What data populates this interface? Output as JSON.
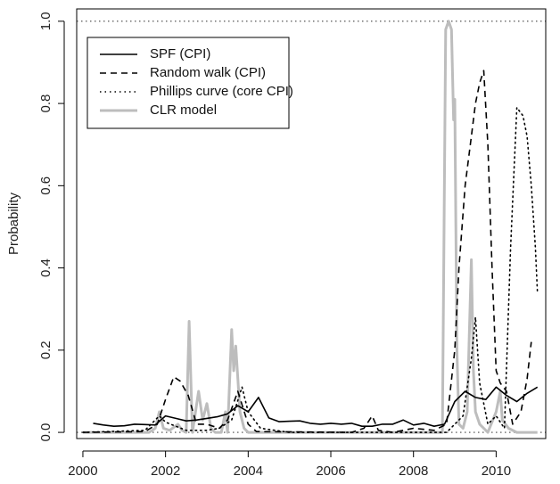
{
  "chart_data": {
    "type": "line",
    "title": "",
    "xlabel": "",
    "ylabel": "Probability",
    "xlim": [
      1999.85,
      2011.2
    ],
    "ylim": [
      -0.015,
      1.03
    ],
    "x_ticks": [
      2000,
      2002,
      2004,
      2006,
      2008,
      2010
    ],
    "x_tick_labels": [
      "2000",
      "2002",
      "2004",
      "2006",
      "2008",
      "2010"
    ],
    "y_ticks": [
      0.0,
      0.2,
      0.4,
      0.6,
      0.8,
      1.0
    ],
    "y_tick_labels": [
      "0.0",
      "0.2",
      "0.4",
      "0.6",
      "0.8",
      "1.0"
    ],
    "grid": false,
    "legend_position": "top-left",
    "reference_lines": [
      {
        "y": 1.0,
        "style": "dotted",
        "color": "#444444"
      },
      {
        "y": 0.0,
        "style": "dotted",
        "color": "#444444"
      }
    ],
    "series": [
      {
        "name": "SPF (CPI)",
        "style": "solid",
        "color": "#000000",
        "width": 1.6,
        "points": [
          [
            2000.25,
            0.022
          ],
          [
            2000.5,
            0.018
          ],
          [
            2000.75,
            0.015
          ],
          [
            2001.0,
            0.016
          ],
          [
            2001.25,
            0.02
          ],
          [
            2001.5,
            0.019
          ],
          [
            2001.75,
            0.018
          ],
          [
            2002.0,
            0.04
          ],
          [
            2002.25,
            0.034
          ],
          [
            2002.5,
            0.028
          ],
          [
            2002.75,
            0.03
          ],
          [
            2003.0,
            0.034
          ],
          [
            2003.25,
            0.038
          ],
          [
            2003.5,
            0.045
          ],
          [
            2003.75,
            0.065
          ],
          [
            2004.0,
            0.05
          ],
          [
            2004.25,
            0.085
          ],
          [
            2004.5,
            0.035
          ],
          [
            2004.75,
            0.026
          ],
          [
            2005.0,
            0.027
          ],
          [
            2005.25,
            0.028
          ],
          [
            2005.5,
            0.022
          ],
          [
            2005.75,
            0.02
          ],
          [
            2006.0,
            0.022
          ],
          [
            2006.25,
            0.02
          ],
          [
            2006.5,
            0.022
          ],
          [
            2006.75,
            0.015
          ],
          [
            2007.0,
            0.015
          ],
          [
            2007.25,
            0.02
          ],
          [
            2007.5,
            0.02
          ],
          [
            2007.75,
            0.03
          ],
          [
            2008.0,
            0.018
          ],
          [
            2008.25,
            0.022
          ],
          [
            2008.5,
            0.015
          ],
          [
            2008.75,
            0.02
          ],
          [
            2009.0,
            0.075
          ],
          [
            2009.25,
            0.1
          ],
          [
            2009.5,
            0.085
          ],
          [
            2009.75,
            0.08
          ],
          [
            2010.0,
            0.11
          ],
          [
            2010.25,
            0.09
          ],
          [
            2010.5,
            0.075
          ],
          [
            2010.75,
            0.095
          ],
          [
            2011.0,
            0.11
          ]
        ]
      },
      {
        "name": "Random walk (CPI)",
        "style": "dashed",
        "color": "#000000",
        "width": 1.6,
        "points": [
          [
            2000.0,
            0.0
          ],
          [
            2001.5,
            0.002
          ],
          [
            2001.8,
            0.02
          ],
          [
            2002.0,
            0.08
          ],
          [
            2002.2,
            0.135
          ],
          [
            2002.35,
            0.125
          ],
          [
            2002.55,
            0.09
          ],
          [
            2002.75,
            0.02
          ],
          [
            2003.0,
            0.02
          ],
          [
            2003.3,
            0.01
          ],
          [
            2003.5,
            0.03
          ],
          [
            2003.75,
            0.1
          ],
          [
            2004.0,
            0.02
          ],
          [
            2004.2,
            0.002
          ],
          [
            2006.5,
            0.0
          ],
          [
            2006.8,
            0.01
          ],
          [
            2007.0,
            0.04
          ],
          [
            2007.15,
            0.005
          ],
          [
            2007.5,
            0.0
          ],
          [
            2008.0,
            0.01
          ],
          [
            2008.5,
            0.005
          ],
          [
            2008.8,
            0.02
          ],
          [
            2009.0,
            0.2
          ],
          [
            2009.1,
            0.4
          ],
          [
            2009.25,
            0.6
          ],
          [
            2009.4,
            0.72
          ],
          [
            2009.5,
            0.8
          ],
          [
            2009.6,
            0.85
          ],
          [
            2009.7,
            0.88
          ],
          [
            2009.8,
            0.7
          ],
          [
            2009.9,
            0.4
          ],
          [
            2010.0,
            0.15
          ],
          [
            2010.1,
            0.12
          ],
          [
            2010.25,
            0.1
          ],
          [
            2010.4,
            0.02
          ],
          [
            2010.6,
            0.05
          ],
          [
            2010.75,
            0.13
          ],
          [
            2010.85,
            0.22
          ]
        ]
      },
      {
        "name": "Phillips curve (core CPI)",
        "style": "dotted",
        "color": "#000000",
        "width": 1.6,
        "points": [
          [
            2000.0,
            0.0
          ],
          [
            2001.5,
            0.005
          ],
          [
            2001.85,
            0.04
          ],
          [
            2002.0,
            0.025
          ],
          [
            2002.5,
            0.005
          ],
          [
            2003.0,
            0.005
          ],
          [
            2003.3,
            0.01
          ],
          [
            2003.6,
            0.03
          ],
          [
            2003.85,
            0.11
          ],
          [
            2004.0,
            0.05
          ],
          [
            2004.3,
            0.01
          ],
          [
            2005.0,
            0.0
          ],
          [
            2008.8,
            0.0
          ],
          [
            2009.0,
            0.02
          ],
          [
            2009.2,
            0.04
          ],
          [
            2009.4,
            0.18
          ],
          [
            2009.5,
            0.28
          ],
          [
            2009.6,
            0.12
          ],
          [
            2009.8,
            0.02
          ],
          [
            2010.0,
            0.04
          ],
          [
            2010.2,
            0.01
          ],
          [
            2010.35,
            0.45
          ],
          [
            2010.5,
            0.79
          ],
          [
            2010.65,
            0.77
          ],
          [
            2010.75,
            0.72
          ],
          [
            2010.85,
            0.6
          ],
          [
            2010.95,
            0.45
          ],
          [
            2011.0,
            0.34
          ]
        ]
      },
      {
        "name": "CLR model",
        "style": "solid",
        "color": "#bdbdbd",
        "width": 3,
        "points": [
          [
            2000.0,
            0.0
          ],
          [
            2001.6,
            0.0
          ],
          [
            2001.75,
            0.01
          ],
          [
            2001.85,
            0.05
          ],
          [
            2001.95,
            0.01
          ],
          [
            2002.1,
            0.005
          ],
          [
            2002.3,
            0.02
          ],
          [
            2002.4,
            0.005
          ],
          [
            2002.5,
            0.0
          ],
          [
            2002.57,
            0.27
          ],
          [
            2002.65,
            0.0
          ],
          [
            2002.8,
            0.1
          ],
          [
            2002.9,
            0.03
          ],
          [
            2003.0,
            0.07
          ],
          [
            2003.1,
            0.01
          ],
          [
            2003.2,
            0.0
          ],
          [
            2003.35,
            0.0
          ],
          [
            2003.45,
            0.05
          ],
          [
            2003.5,
            0.0
          ],
          [
            2003.6,
            0.25
          ],
          [
            2003.65,
            0.15
          ],
          [
            2003.7,
            0.21
          ],
          [
            2003.8,
            0.05
          ],
          [
            2003.9,
            0.01
          ],
          [
            2004.0,
            0.0
          ],
          [
            2008.7,
            0.0
          ],
          [
            2008.78,
            0.98
          ],
          [
            2008.85,
            1.0
          ],
          [
            2008.92,
            0.98
          ],
          [
            2008.97,
            0.76
          ],
          [
            2009.0,
            0.81
          ],
          [
            2009.05,
            0.2
          ],
          [
            2009.1,
            0.02
          ],
          [
            2009.2,
            0.01
          ],
          [
            2009.3,
            0.05
          ],
          [
            2009.4,
            0.42
          ],
          [
            2009.45,
            0.15
          ],
          [
            2009.5,
            0.05
          ],
          [
            2009.6,
            0.02
          ],
          [
            2009.7,
            0.01
          ],
          [
            2009.8,
            0.0
          ],
          [
            2010.0,
            0.05
          ],
          [
            2010.1,
            0.1
          ],
          [
            2010.15,
            0.03
          ],
          [
            2010.3,
            0.01
          ],
          [
            2010.5,
            0.0
          ],
          [
            2011.0,
            0.0
          ]
        ]
      }
    ]
  }
}
